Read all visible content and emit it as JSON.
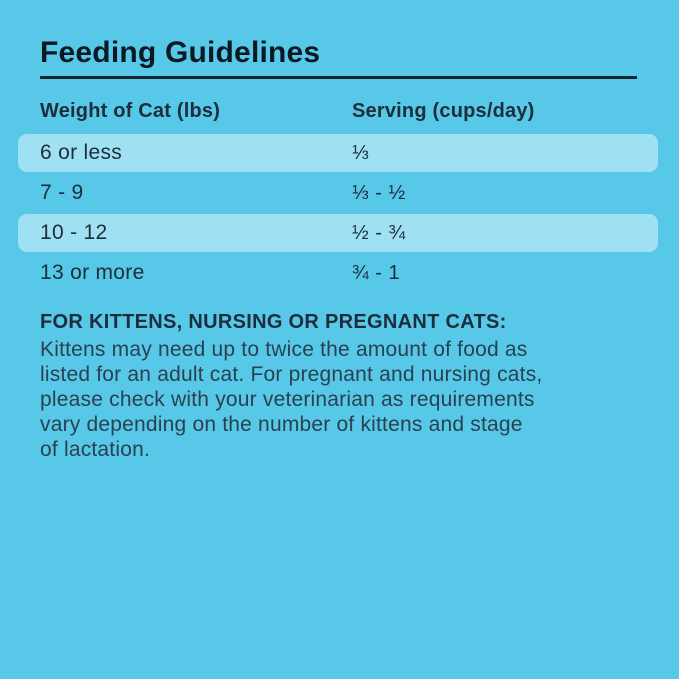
{
  "title": "Feeding Guidelines",
  "table": {
    "headers": [
      "Weight of Cat (lbs)",
      "Serving (cups/day)"
    ],
    "rows": [
      {
        "weight": "6 or less",
        "serving": "⅓",
        "highlighted": true
      },
      {
        "weight": "7 - 9",
        "serving": "⅓ - ½",
        "highlighted": false
      },
      {
        "weight": "10 - 12",
        "serving": "½ - ¾",
        "highlighted": true
      },
      {
        "weight": "13 or more",
        "serving": "¾ - 1",
        "highlighted": false
      }
    ]
  },
  "note": {
    "heading": "FOR KITTENS, NURSING OR PREGNANT CATS:",
    "body": "Kittens may need up to twice the amount of food as listed for an adult cat. For pregnant and nursing cats, please check with your veterinarian as requirements vary depending on the number of kittens and stage of lactation.",
    "lines": [
      "Kittens may need up to twice the amount of food as",
      "listed for an adult cat. For pregnant and nursing cats,",
      "please check with your veterinarian as requirements",
      "vary depending on the number of kittens and stage",
      "of lactation."
    ]
  },
  "colors": {
    "background": "#57c8e8",
    "row_highlight": "#9fe1f2",
    "title_text": "#0d1922",
    "table_text": "#1c2d3b",
    "body_text": "#2a4150"
  }
}
